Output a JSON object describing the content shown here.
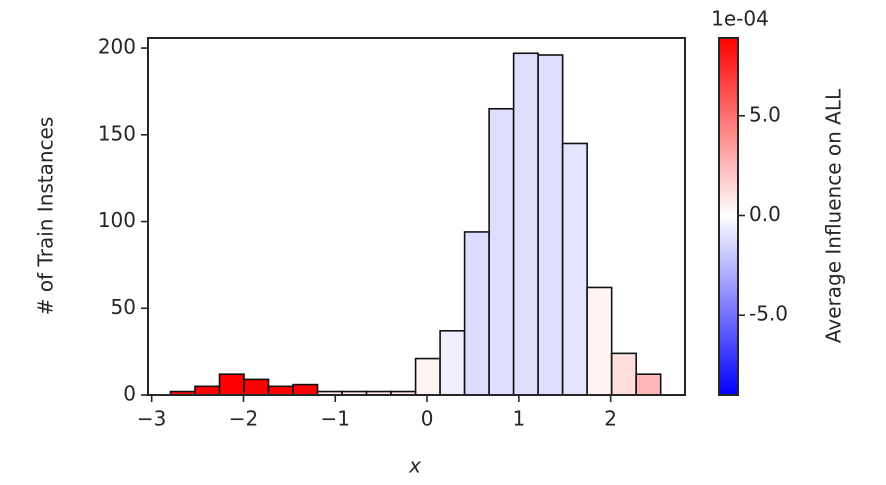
{
  "chart_data": {
    "type": "histogram",
    "xlabel": "x",
    "ylabel": "# of Train Instances",
    "bins": [
      -2.795,
      -2.528,
      -2.261,
      -1.994,
      -1.727,
      -1.46,
      -1.193,
      -0.926,
      -0.659,
      -0.392,
      -0.125,
      0.142,
      0.409,
      0.676,
      0.943,
      1.21,
      1.477,
      1.744,
      2.011,
      2.278,
      2.545
    ],
    "values": [
      2,
      5,
      12,
      9,
      5,
      6,
      2,
      2,
      2,
      2,
      21,
      37,
      94,
      165,
      197,
      196,
      145,
      62,
      24,
      12
    ],
    "colors": [
      "#ff1010",
      "#ff0000",
      "#ff0000",
      "#ff0000",
      "#ff0000",
      "#ff0000",
      "#ffe8e8",
      "#ffe8e8",
      "#ffe8e8",
      "#ffe8e8",
      "#fff4f4",
      "#eeeeff",
      "#dcdcfe",
      "#dedefe",
      "#dedefe",
      "#dedefe",
      "#e4e4fe",
      "#fff3f3",
      "#ffdede",
      "#ffb8b8"
    ],
    "xlim": [
      -3.04,
      2.81
    ],
    "ylim": [
      0,
      205.8
    ],
    "xticks": [
      {
        "value": -3,
        "label": "−3"
      },
      {
        "value": -2,
        "label": "−2"
      },
      {
        "value": -1,
        "label": "−1"
      },
      0,
      1,
      2
    ],
    "yticks": [
      0,
      50,
      100,
      150,
      200
    ],
    "colorbar": {
      "label": "Average Influence on ALL",
      "offset_text": "1e-04",
      "clim": [
        -9.0,
        8.9
      ],
      "colors": [
        "#0000ff",
        "#ffffff",
        "#ff0000"
      ],
      "ticks": [
        {
          "value": -5,
          "label": "-5.0"
        },
        {
          "value": 0,
          "label": "0.0"
        },
        {
          "value": 5,
          "label": "5.0"
        }
      ]
    }
  }
}
